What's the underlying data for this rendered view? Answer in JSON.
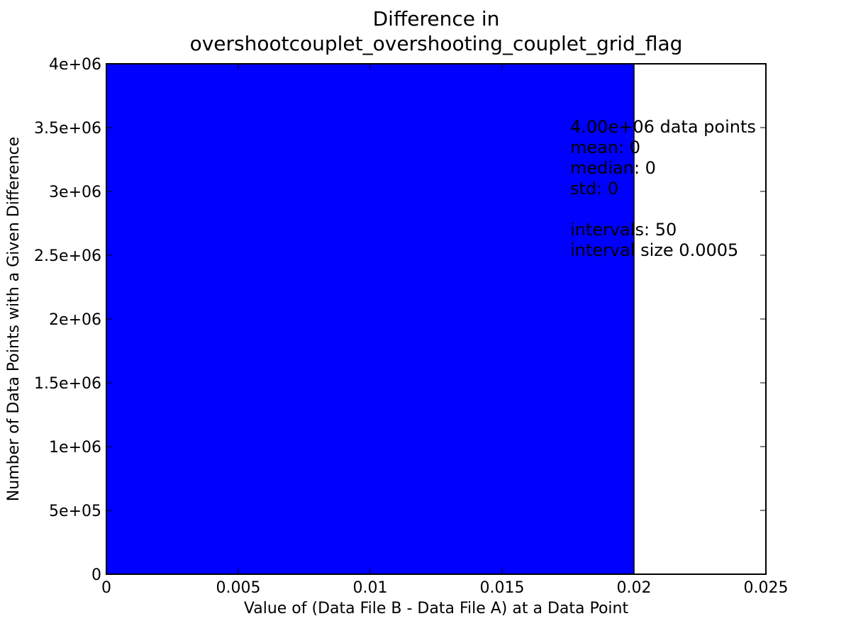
{
  "chart_data": {
    "type": "bar",
    "title": [
      "Difference in",
      "overshootcouplet_overshooting_couplet_grid_flag"
    ],
    "xlabel": "Value of (Data File B - Data File A) at a Data Point",
    "ylabel": "Number of Data Points with a Given Difference",
    "xlim": [
      0,
      0.025
    ],
    "ylim": [
      0,
      4000000
    ],
    "xticks": [
      0,
      0.005,
      0.01,
      0.015,
      0.02,
      0.025
    ],
    "xtick_labels": [
      "0",
      "0.005",
      "0.01",
      "0.015",
      "0.02",
      "0.025"
    ],
    "yticks": [
      0,
      500000,
      1000000,
      1500000,
      2000000,
      2500000,
      3000000,
      3500000,
      4000000
    ],
    "ytick_labels": [
      "0",
      "5e+05",
      "1e+06",
      "1.5e+06",
      "2e+06",
      "2.5e+06",
      "3e+06",
      "3.5e+06",
      "4e+06"
    ],
    "bars": [
      {
        "x_start": 0,
        "x_end": 0.02,
        "value": 4000000,
        "color": "#0000ff"
      }
    ],
    "annotation_lines": [
      "4.00e+06 data points",
      "mean: 0",
      "median: 0",
      "std: 0",
      "",
      "intervals: 50",
      "interval size 0.0005"
    ],
    "grid": false,
    "legend": "none"
  }
}
